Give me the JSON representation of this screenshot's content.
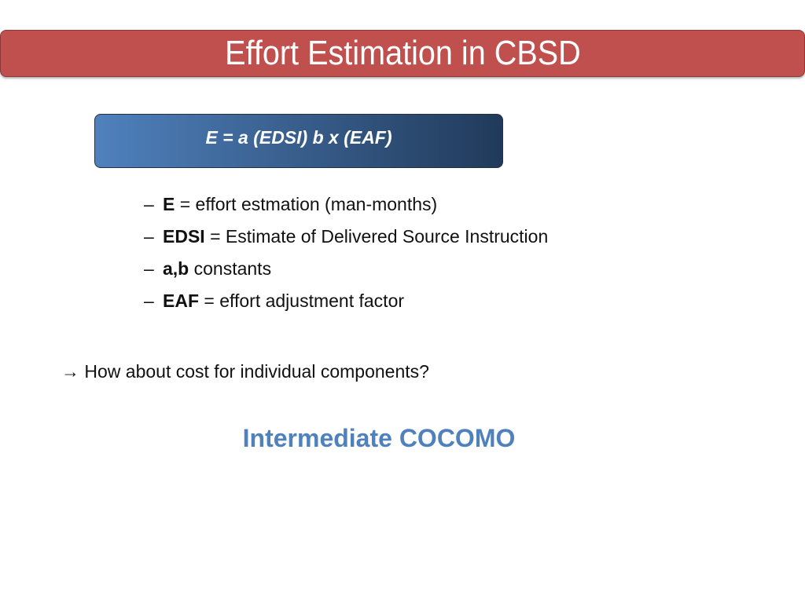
{
  "title": "Effort Estimation in CBSD",
  "formula": "E = a (EDSI) b x (EAF)",
  "bullets": [
    {
      "term": "E",
      "desc": " = effort estmation (man-months)"
    },
    {
      "term": "EDSI",
      "desc": " = Estimate of Delivered Source Instruction"
    },
    {
      "term": "a,b",
      "desc": " constants"
    },
    {
      "term": "EAF",
      "desc": " = effort adjustment factor"
    }
  ],
  "question": "→ How about cost for individual components?",
  "highlight": "Intermediate COCOMO",
  "colors": {
    "title_bg": "#c0504d",
    "formula_start": "#4f81bd",
    "formula_end": "#213a5a",
    "highlight": "#4f81bd"
  }
}
